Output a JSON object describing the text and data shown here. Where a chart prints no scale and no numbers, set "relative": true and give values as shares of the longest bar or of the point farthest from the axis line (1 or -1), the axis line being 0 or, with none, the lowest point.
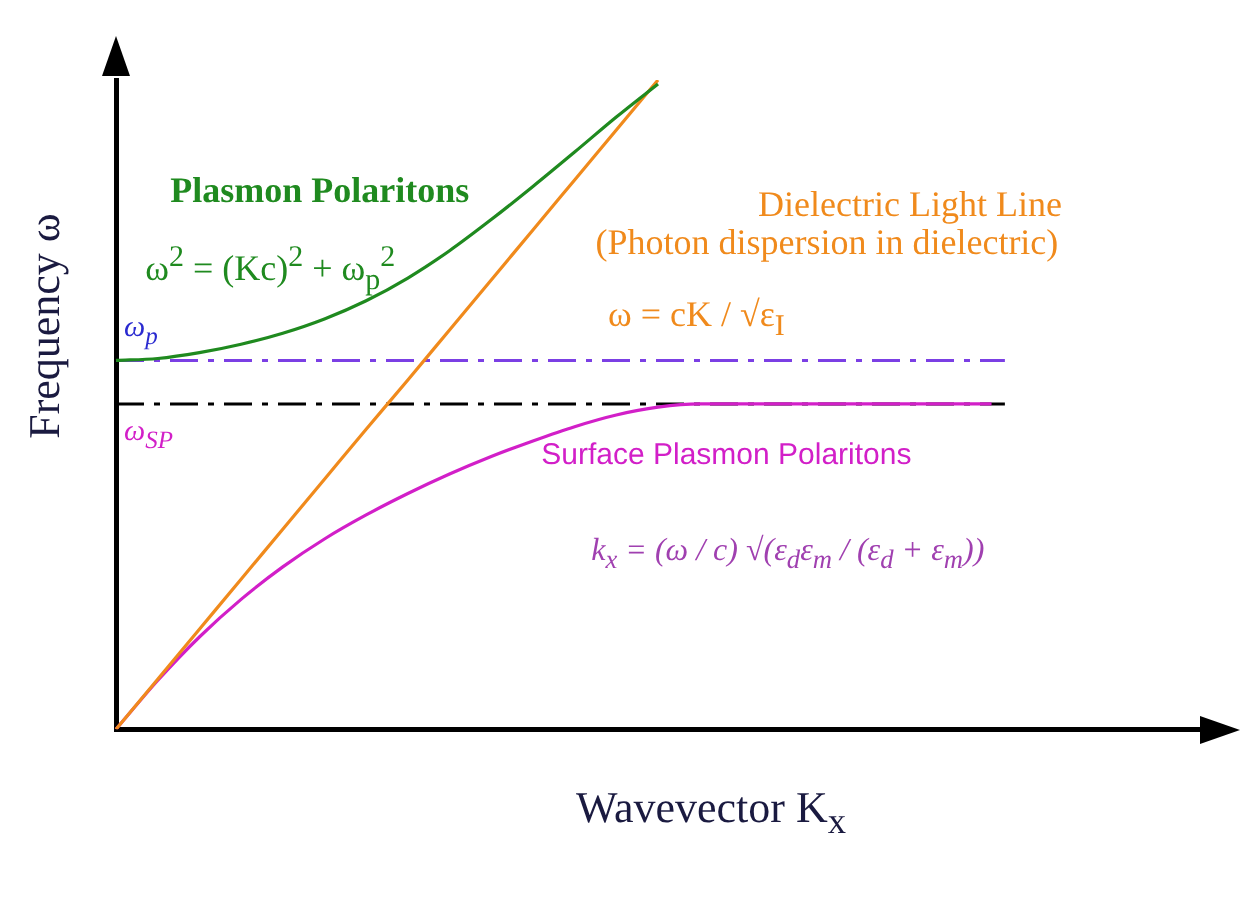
{
  "chart_data": {
    "type": "line",
    "relative": true,
    "xlabel": "Wavevector K$_{x}$",
    "ylabel": "Frequency ω",
    "categories": [
      null,
      null,
      null,
      null,
      null,
      null,
      null,
      null,
      null,
      null,
      null,
      null,
      null,
      null,
      null,
      null,
      null,
      null,
      null,
      null,
      null,
      null,
      null,
      null,
      null,
      null,
      null
    ],
    "series": [
      {
        "name": "Plasmon Polaritons",
        "color": "#1f8a1f",
        "values": [
          0.568,
          0.571,
          0.58,
          0.593,
          0.61,
          0.632,
          0.66,
          0.695,
          0.737,
          0.785,
          0.836,
          0.889,
          0.943,
          0.994,
          null,
          null,
          null,
          null,
          null,
          null,
          null,
          null,
          null,
          null,
          null,
          null,
          null
        ]
      },
      {
        "name": "Dielectric Light Line",
        "color": "#f08a1c",
        "values": [
          0,
          0.077,
          0.154,
          0.231,
          0.308,
          0.385,
          0.462,
          0.538,
          0.615,
          0.692,
          0.769,
          0.846,
          0.923,
          1,
          null,
          null,
          null,
          null,
          null,
          null,
          null,
          null,
          null,
          null,
          null,
          null,
          null
        ]
      },
      {
        "name": "Surface Plasmon Polaritons",
        "color": "#d21fc8",
        "values": [
          0,
          0.075,
          0.142,
          0.2,
          0.25,
          0.293,
          0.33,
          0.363,
          0.393,
          0.42,
          0.444,
          0.466,
          0.484,
          0.496,
          0.501,
          0.501,
          0.501,
          0.501,
          0.501,
          0.501,
          0.501,
          0.501,
          null,
          null,
          null,
          null,
          null
        ]
      }
    ],
    "ref_lines": [
      {
        "axis": "y",
        "value": 0.568,
        "label": "ω$_{p}$",
        "color": "#7b3fe4",
        "line_style": "dashed"
      },
      {
        "axis": "y",
        "value": 0.501,
        "label": "ω$_{SP}$",
        "color": "#000000",
        "line_style": "dashed"
      }
    ],
    "annotations": [
      "ω$^{2}$ = (Kc)$^{2}$ + ω$_{p}$$^{2}$",
      "(Photon dispersion in dielectric)",
      "ω = cK / √ε$_{I}$",
      "k$_{x}$ = (ω / c) √(ε$_{d}$ε$_{m}$ / (ε$_{d}$ + ε$_{m}$))"
    ],
    "grid": false,
    "legend": false,
    "marker": "none",
    "line_style": "solid"
  }
}
